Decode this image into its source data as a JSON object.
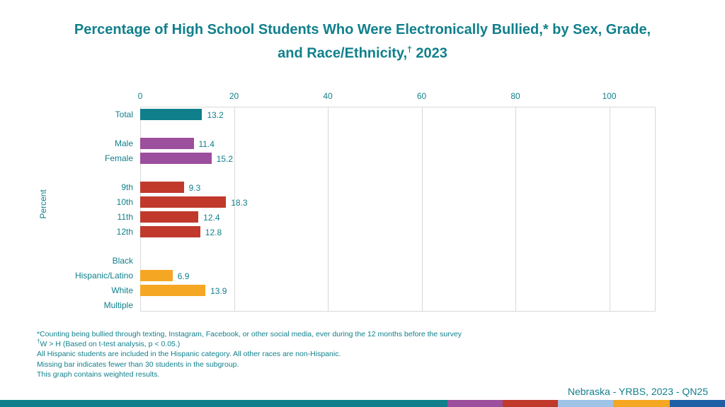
{
  "chart_data": {
    "type": "bar",
    "orientation": "horizontal",
    "title_line1": "Percentage of High School Students Who Were Electronically Bullied,* by Sex, Grade,",
    "title_line2": "and Race/Ethnicity,",
    "title_sup": "†",
    "title_year": "2023",
    "ylabel": "Percent",
    "xlim": [
      0,
      110
    ],
    "xticks": [
      "0",
      "20",
      "40",
      "60",
      "80",
      "100"
    ],
    "grid": true,
    "categories": [
      "Total",
      "Male",
      "Female",
      "9th",
      "10th",
      "11th",
      "12th",
      "Black",
      "Hispanic/Latino",
      "White",
      "Multiple"
    ],
    "values": [
      13.2,
      11.4,
      15.2,
      9.3,
      18.3,
      12.4,
      12.8,
      null,
      6.9,
      13.9,
      null
    ],
    "groups": [
      "total",
      "sex",
      "sex",
      "grade",
      "grade",
      "grade",
      "grade",
      "race",
      "race",
      "race",
      "race"
    ],
    "group_colors": {
      "total": "#0f7f8c",
      "sex": "#9b4f9d",
      "grade": "#c0392b",
      "race": "#f5a623"
    }
  },
  "notes": {
    "line1": "*Counting being bullied through texting, Instagram, Facebook, or other social media, ever during the 12 months before the survey",
    "line2_sup": "†",
    "line2": "W > H (Based on t-test analysis, p < 0.05.)",
    "line3": "All Hispanic students are included in the Hispanic category.  All other races are non-Hispanic.",
    "line4": "Missing bar indicates fewer than 30 students in the subgroup.",
    "line5": "This graph contains weighted results."
  },
  "source": "Nebraska - YRBS, 2023 - QN25",
  "footer_colors": [
    "#0f7f8c",
    "#9b4f9d",
    "#c0392b",
    "#9ec3e6",
    "#f5a623",
    "#1f5fa6"
  ]
}
